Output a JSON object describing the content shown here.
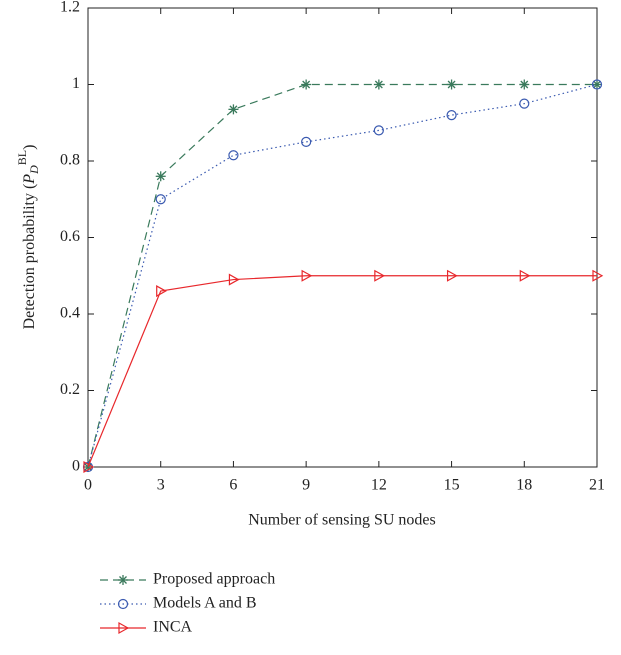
{
  "chart_data": {
    "type": "line",
    "xlabel": "Number of sensing SU nodes",
    "ylabel": {
      "text": "Detection probability (",
      "symbol": "P",
      "sub": "D",
      "sup": "BL",
      "close": ")"
    },
    "x": [
      0,
      3,
      6,
      9,
      12,
      15,
      18,
      21
    ],
    "xlim": [
      0,
      21
    ],
    "xticks": [
      0,
      3,
      6,
      9,
      12,
      15,
      18,
      21
    ],
    "ylim": [
      0,
      1.2
    ],
    "yticks": [
      0,
      0.2,
      0.4,
      0.6,
      0.8,
      1,
      1.2
    ],
    "legend": "below",
    "series": [
      {
        "name": "Proposed approach",
        "color": "#3a7a5c",
        "linestyle": "dash",
        "marker": "star",
        "values": [
          0,
          0.76,
          0.935,
          1,
          1,
          1,
          1,
          1
        ]
      },
      {
        "name": "Models A and B",
        "color": "#3a5ab0",
        "linestyle": "dot",
        "marker": "circle",
        "values": [
          0,
          0.7,
          0.815,
          0.85,
          0.88,
          0.92,
          0.95,
          1
        ]
      },
      {
        "name": "INCA",
        "color": "#e8282c",
        "linestyle": "solid",
        "marker": "triangle-right",
        "values": [
          0,
          0.46,
          0.49,
          0.5,
          0.5,
          0.5,
          0.5,
          0.5
        ]
      }
    ]
  }
}
